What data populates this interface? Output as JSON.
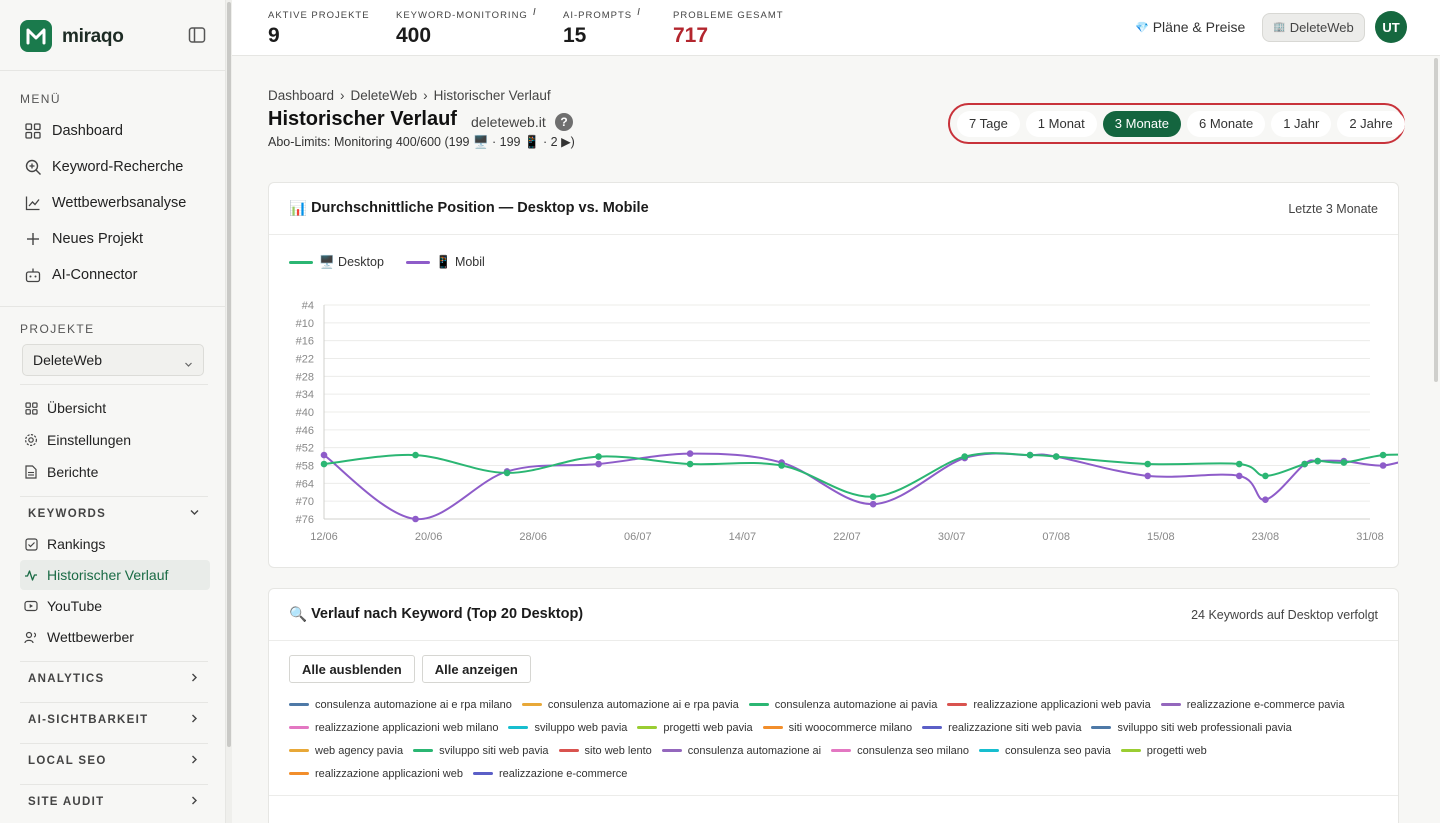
{
  "brand": {
    "name": "miraqo"
  },
  "sidebar": {
    "menu_heading": "MENÜ",
    "menu": [
      {
        "label": "Dashboard",
        "icon": "grid-icon"
      },
      {
        "label": "Keyword-Recherche",
        "icon": "search-plus-icon"
      },
      {
        "label": "Wettbewerbsanalyse",
        "icon": "line-chart-icon"
      },
      {
        "label": "Neues Projekt",
        "icon": "plus-icon"
      },
      {
        "label": "AI-Connector",
        "icon": "bot-icon"
      }
    ],
    "projects_heading": "PROJEKTE",
    "project_select": "DeleteWeb",
    "project_nav": [
      {
        "label": "Übersicht",
        "icon": "grid-icon"
      },
      {
        "label": "Einstellungen",
        "icon": "gear-icon"
      },
      {
        "label": "Berichte",
        "icon": "document-icon"
      }
    ],
    "keywords_group": "KEYWORDS",
    "keyword_nav": [
      {
        "label": "Rankings",
        "icon": "checkbox-icon"
      },
      {
        "label": "Historischer Verlauf",
        "icon": "activity-icon"
      },
      {
        "label": "YouTube",
        "icon": "youtube-icon"
      },
      {
        "label": "Wettbewerber",
        "icon": "users-icon"
      }
    ],
    "groups": [
      "ANALYTICS",
      "AI-SICHTBARKEIT",
      "LOCAL SEO",
      "SITE AUDIT"
    ]
  },
  "topbar": {
    "stats": [
      {
        "label": "AKTIVE PROJEKTE",
        "value": "9",
        "info": ""
      },
      {
        "label": "KEYWORD-MONITORING",
        "value": "400",
        "info": "i"
      },
      {
        "label": "AI-PROMPTS",
        "value": "15",
        "info": "i"
      },
      {
        "label": "PROBLEME GESAMT",
        "value": "717",
        "info": ""
      }
    ],
    "plans_icon": "💎",
    "plans_label": "Pläne & Preise",
    "project_icon": "🏢",
    "project_label": "DeleteWeb",
    "avatar": "UT"
  },
  "breadcrumb": [
    "Dashboard",
    "DeleteWeb",
    "Historischer Verlauf"
  ],
  "breadcrumb_sep": "›",
  "page": {
    "title": "Historischer Verlauf",
    "domain": "deleteweb.it",
    "help": "?",
    "limits": "Abo-Limits: Monitoring 400/600 (199 🖥️ · 199 📱 · 2 ▶)"
  },
  "ranges": {
    "options": [
      "7 Tage",
      "1 Monat",
      "3 Monate",
      "6 Monate",
      "1 Jahr",
      "2 Jahre"
    ],
    "selected": "3 Monate"
  },
  "position_card": {
    "icon": "📊",
    "title": "Durchschnittliche Position — Desktop vs. Mobile",
    "meta": "Letzte 3 Monate"
  },
  "chart_data": {
    "type": "line",
    "title": "Durchschnittliche Position — Desktop vs. Mobile",
    "y_inverted": true,
    "ylim": [
      4,
      76
    ],
    "yticks": [
      "#4",
      "#10",
      "#16",
      "#22",
      "#28",
      "#34",
      "#40",
      "#46",
      "#52",
      "#58",
      "#64",
      "#70",
      "#76"
    ],
    "xticks": [
      "12/06",
      "20/06",
      "28/06",
      "06/07",
      "14/07",
      "22/07",
      "30/07",
      "07/08",
      "15/08",
      "23/08",
      "31/08"
    ],
    "grid": "horizontal",
    "legend_placement": "top-left",
    "series": [
      {
        "name": "🖥️ Desktop",
        "color": "#2bb673",
        "points": [
          [
            0,
            57.5
          ],
          [
            7,
            54.5
          ],
          [
            14,
            60.5
          ],
          [
            21,
            55
          ],
          [
            28,
            57.5
          ],
          [
            35,
            58
          ],
          [
            42,
            68.5
          ],
          [
            49,
            55
          ],
          [
            54,
            54.5
          ],
          [
            56,
            55
          ],
          [
            63,
            57.5
          ],
          [
            70,
            57.5
          ],
          [
            72,
            61.5
          ],
          [
            75,
            57.5
          ],
          [
            76,
            56.5
          ],
          [
            78,
            57
          ],
          [
            81,
            54.5
          ],
          [
            84,
            54.5
          ]
        ]
      },
      {
        "name": "📱 Mobil",
        "color": "#8e5cc9",
        "points": [
          [
            0,
            54.5
          ],
          [
            7,
            76
          ],
          [
            14,
            60
          ],
          [
            21,
            57.5
          ],
          [
            28,
            54
          ],
          [
            35,
            57
          ],
          [
            42,
            71
          ],
          [
            49,
            55.5
          ],
          [
            54,
            54.5
          ],
          [
            56,
            55
          ],
          [
            63,
            61.5
          ],
          [
            70,
            61.5
          ],
          [
            72,
            69.5
          ],
          [
            75,
            57.5
          ],
          [
            76,
            56.5
          ],
          [
            78,
            56.5
          ],
          [
            81,
            58
          ],
          [
            84,
            54.5
          ]
        ]
      }
    ]
  },
  "keyword_card": {
    "icon": "🔍",
    "title": "Verlauf nach Keyword (Top 20 Desktop)",
    "meta": "24 Keywords auf Desktop verfolgt",
    "hide_all": "Alle ausblenden",
    "show_all": "Alle anzeigen",
    "keywords": [
      {
        "label": "consulenza automazione ai e rpa milano",
        "color": "#4e79a7"
      },
      {
        "label": "consulenza automazione ai e rpa pavia",
        "color": "#e8a838"
      },
      {
        "label": "consulenza automazione ai pavia",
        "color": "#2bb673"
      },
      {
        "label": "realizzazione applicazioni web pavia",
        "color": "#d9534f"
      },
      {
        "label": "realizzazione e-commerce pavia",
        "color": "#9467bd"
      },
      {
        "label": "realizzazione applicazioni web milano",
        "color": "#e377c2"
      },
      {
        "label": "sviluppo web pavia",
        "color": "#17becf"
      },
      {
        "label": "progetti web pavia",
        "color": "#9acd32"
      },
      {
        "label": "siti woocommerce milano",
        "color": "#f28e2b"
      },
      {
        "label": "realizzazione siti web pavia",
        "color": "#5b5fc7"
      },
      {
        "label": "sviluppo siti web professionali pavia",
        "color": "#4e79a7"
      },
      {
        "label": "web agency pavia",
        "color": "#e8a838"
      },
      {
        "label": "sviluppo siti web pavia",
        "color": "#2bb673"
      },
      {
        "label": "sito web lento",
        "color": "#d9534f"
      },
      {
        "label": "consulenza automazione ai",
        "color": "#9467bd"
      },
      {
        "label": "consulenza seo milano",
        "color": "#e377c2"
      },
      {
        "label": "consulenza seo pavia",
        "color": "#17becf"
      },
      {
        "label": "progetti web",
        "color": "#9acd32"
      },
      {
        "label": "realizzazione applicazioni web",
        "color": "#f28e2b"
      },
      {
        "label": "realizzazione e-commerce",
        "color": "#5b5fc7"
      }
    ]
  }
}
